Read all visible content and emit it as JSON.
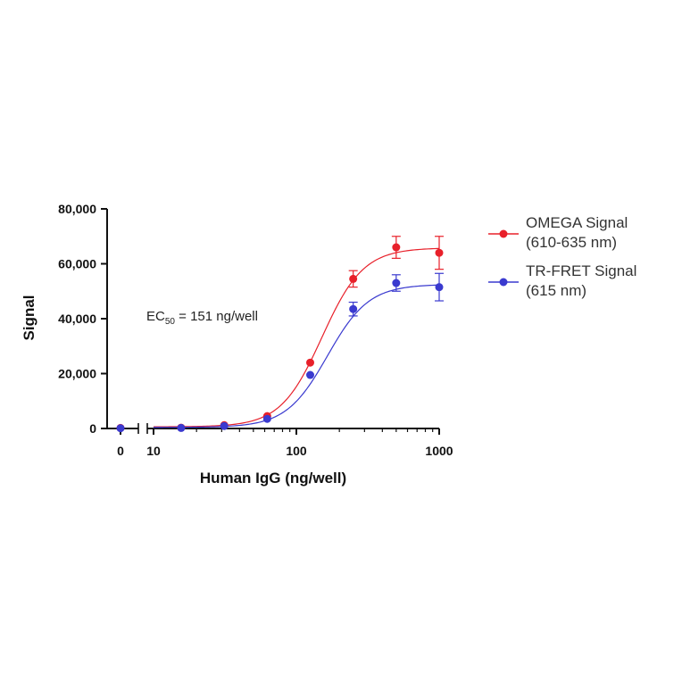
{
  "chart_data": {
    "type": "scatter",
    "xlabel": "Human IgG (ng/well)",
    "ylabel": "Signal",
    "x_scale": "log",
    "x_axis_break": true,
    "xlim": [
      10,
      1000
    ],
    "ylim": [
      0,
      80000
    ],
    "x_tick_labels": [
      "0",
      "10",
      "100",
      "1000"
    ],
    "y_tick_labels": [
      "0",
      "20,000",
      "40,000",
      "60,000",
      "80,000"
    ],
    "y_ticks": [
      0,
      20000,
      40000,
      60000,
      80000
    ],
    "grid": false,
    "legend_position": "right",
    "annotation": {
      "prefix": "EC",
      "subscript": "50",
      "suffix": " = 151 ng/well"
    },
    "series": [
      {
        "name": "OMEGA Signal",
        "name_line2": "(610-635 nm)",
        "color": "#e8202a",
        "points": [
          {
            "x": 0,
            "y": 200,
            "err": 0
          },
          {
            "x": 15.6,
            "y": 300,
            "err": 0
          },
          {
            "x": 31.25,
            "y": 1200,
            "err": 0
          },
          {
            "x": 62.5,
            "y": 4500,
            "err": 0
          },
          {
            "x": 125,
            "y": 24000,
            "err": 0
          },
          {
            "x": 250,
            "y": 54500,
            "err": 3000
          },
          {
            "x": 500,
            "y": 66000,
            "err": 4000
          },
          {
            "x": 1000,
            "y": 64000,
            "err": 6000
          }
        ],
        "fit": {
          "bottom": 600,
          "top": 65800,
          "ec50": 151,
          "hill": 3.0
        }
      },
      {
        "name": "TR-FRET Signal",
        "name_line2": "(615 nm)",
        "color": "#3a3acf",
        "points": [
          {
            "x": 0,
            "y": 100,
            "err": 0
          },
          {
            "x": 15.6,
            "y": 200,
            "err": 0
          },
          {
            "x": 31.25,
            "y": 900,
            "err": 0
          },
          {
            "x": 62.5,
            "y": 3500,
            "err": 0
          },
          {
            "x": 125,
            "y": 19500,
            "err": 0
          },
          {
            "x": 250,
            "y": 43500,
            "err": 2500
          },
          {
            "x": 500,
            "y": 53000,
            "err": 3000
          },
          {
            "x": 1000,
            "y": 51500,
            "err": 5000
          }
        ],
        "fit": {
          "bottom": 400,
          "top": 52500,
          "ec50": 165,
          "hill": 3.0
        }
      }
    ]
  }
}
